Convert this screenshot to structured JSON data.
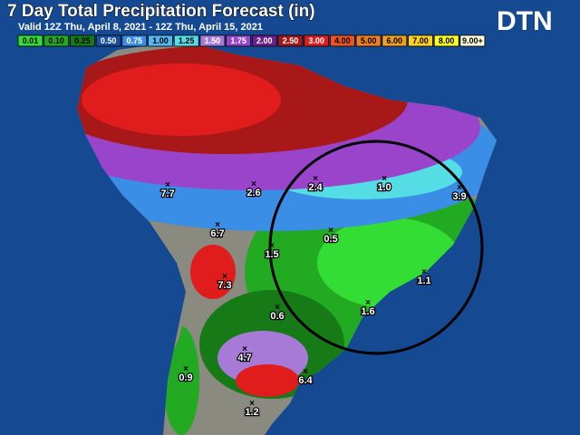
{
  "header": {
    "title": "7 Day Total Precipitation Forecast (in)",
    "subtitle": "Valid 12Z Thu, April 8, 2021 - 12Z Thu, April 15, 2021",
    "logo": "DTN"
  },
  "legend": [
    {
      "label": "0.01",
      "color": "#33dd33"
    },
    {
      "label": "0.10",
      "color": "#22aa22"
    },
    {
      "label": "0.25",
      "color": "#167a16"
    },
    {
      "label": "0.50",
      "color": "#1a4fa0"
    },
    {
      "label": "0.75",
      "color": "#3a8ee6"
    },
    {
      "label": "1.00",
      "color": "#55b8f2"
    },
    {
      "label": "1.25",
      "color": "#55dde6"
    },
    {
      "label": "1.50",
      "color": "#a77ad8"
    },
    {
      "label": "1.75",
      "color": "#9a44cc"
    },
    {
      "label": "2.00",
      "color": "#6e1e8e"
    },
    {
      "label": "2.50",
      "color": "#a81818"
    },
    {
      "label": "3.00",
      "color": "#e01c1c"
    },
    {
      "label": "4.00",
      "color": "#f0521e"
    },
    {
      "label": "5.00",
      "color": "#f07e1e"
    },
    {
      "label": "6.00",
      "color": "#f0a01e"
    },
    {
      "label": "7.00",
      "color": "#ffd21e"
    },
    {
      "label": "8.00",
      "color": "#ffff22"
    },
    {
      "label": "9.00+",
      "color": "#ffffd8"
    }
  ],
  "points": [
    {
      "label": "7.7"
    },
    {
      "label": "2.6"
    },
    {
      "label": "2.4"
    },
    {
      "label": "1.0"
    },
    {
      "label": "3.9"
    },
    {
      "label": "6.7"
    },
    {
      "label": "0.5"
    },
    {
      "label": "1.5"
    },
    {
      "label": "7.3"
    },
    {
      "label": "1.1"
    },
    {
      "label": "0.6"
    },
    {
      "label": "1.6"
    },
    {
      "label": "4.7"
    },
    {
      "label": "0.9"
    },
    {
      "label": "6.4"
    },
    {
      "label": "1.2"
    }
  ]
}
